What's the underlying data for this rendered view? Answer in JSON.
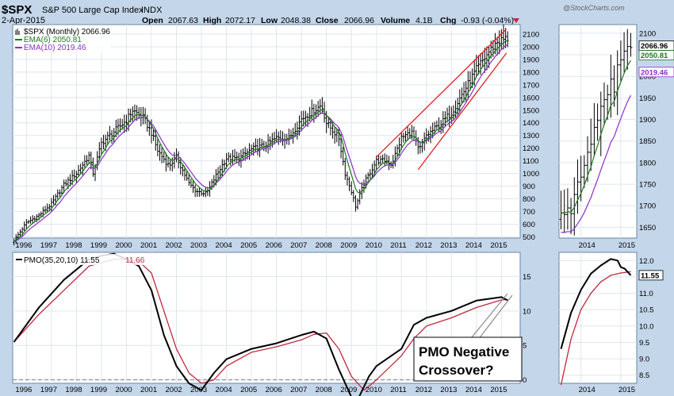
{
  "header": {
    "symbol": "$SPX",
    "name": "S&P 500 Large Cap Index",
    "exchange": "INDX",
    "date": "2-Apr-2015",
    "watermark": "@StockCharts.com",
    "open_label": "Open",
    "open": "2067.63",
    "high_label": "High",
    "high": "2072.17",
    "low_label": "Low",
    "low": "2048.38",
    "close_label": "Close",
    "close": "2066.96",
    "volume_label": "Volume",
    "volume": "4.1B",
    "chg_label": "Chg",
    "chg": "-0.93 (-0.04%)"
  },
  "colors": {
    "background": "#c4d6ea",
    "panel": "#ffffff",
    "grid": "#dfe6ee",
    "price_bars": "#000000",
    "ema_short": "#1b7a1b",
    "ema_long": "#8b2fc9",
    "channel": "#e02020",
    "pmo": "#000000",
    "signal": "#c0283c",
    "zero_line": "#7f7f7f"
  },
  "annotation": {
    "line1": "PMO Negative",
    "line2": "Crossover?"
  },
  "chart_data": [
    {
      "id": "price-main",
      "type": "ohlc",
      "legend": [
        "$SPX (Monthly) 2066.96",
        "EMA(6) 2050.81",
        "EMA(10) 2019.46"
      ],
      "x_ticks": [
        "1996",
        "1997",
        "1998",
        "1999",
        "2000",
        "2001",
        "2002",
        "2003",
        "2004",
        "2005",
        "2006",
        "2007",
        "2008",
        "2009",
        "2010",
        "2011",
        "2012",
        "2013",
        "2014",
        "2015"
      ],
      "y_ticks": [
        "500",
        "600",
        "700",
        "800",
        "900",
        "1000",
        "1100",
        "1200",
        "1300",
        "1400",
        "1500",
        "1600",
        "1700",
        "1800",
        "1900",
        "2000",
        "2100"
      ],
      "ylim": [
        490,
        2175
      ],
      "xlim": [
        1995.45,
        2015.75
      ],
      "anchors": [
        [
          1995.5,
          470
        ],
        [
          1996.0,
          610
        ],
        [
          1996.5,
          670
        ],
        [
          1997.0,
          760
        ],
        [
          1997.5,
          910
        ],
        [
          1998.0,
          1000
        ],
        [
          1998.5,
          1140
        ],
        [
          1998.67,
          1000
        ],
        [
          1999.0,
          1240
        ],
        [
          1999.5,
          1330
        ],
        [
          2000.0,
          1420
        ],
        [
          2000.25,
          1500
        ],
        [
          2000.67,
          1440
        ],
        [
          2001.0,
          1320
        ],
        [
          2001.25,
          1180
        ],
        [
          2001.7,
          1060
        ],
        [
          2002.0,
          1130
        ],
        [
          2002.5,
          920
        ],
        [
          2002.8,
          860
        ],
        [
          2003.2,
          840
        ],
        [
          2003.6,
          990
        ],
        [
          2004.0,
          1120
        ],
        [
          2004.5,
          1120
        ],
        [
          2005.0,
          1190
        ],
        [
          2005.5,
          1220
        ],
        [
          2006.0,
          1280
        ],
        [
          2006.5,
          1280
        ],
        [
          2007.0,
          1430
        ],
        [
          2007.5,
          1500
        ],
        [
          2007.8,
          1540
        ],
        [
          2008.0,
          1400
        ],
        [
          2008.5,
          1280
        ],
        [
          2008.75,
          1000
        ],
        [
          2009.0,
          860
        ],
        [
          2009.17,
          740
        ],
        [
          2009.5,
          920
        ],
        [
          2010.0,
          1100
        ],
        [
          2010.4,
          1100
        ],
        [
          2010.6,
          1070
        ],
        [
          2011.0,
          1280
        ],
        [
          2011.4,
          1330
        ],
        [
          2011.7,
          1180
        ],
        [
          2012.0,
          1300
        ],
        [
          2012.5,
          1380
        ],
        [
          2013.0,
          1480
        ],
        [
          2013.5,
          1650
        ],
        [
          2014.0,
          1820
        ],
        [
          2014.5,
          1960
        ],
        [
          2014.83,
          2040
        ],
        [
          2015.0,
          2050
        ],
        [
          2015.25,
          2067
        ]
      ],
      "channel_lines": [
        {
          "x": [
            2010.0,
            2015.2
          ],
          "y": [
            1130,
            2140
          ]
        },
        {
          "x": [
            2011.67,
            2015.2
          ],
          "y": [
            1030,
            1950
          ]
        }
      ]
    },
    {
      "id": "price-zoom",
      "type": "ohlc",
      "x_ticks": [
        "2014",
        "2015"
      ],
      "y_ticks": [
        "1650",
        "1700",
        "1750",
        "1800",
        "1850",
        "1900",
        "1950",
        "2000",
        "2050",
        "2100"
      ],
      "ylim": [
        1625,
        2120
      ],
      "xlim": [
        2013.45,
        2015.4
      ],
      "value_labels": [
        "2066.96",
        "2050.81",
        "2019.46"
      ],
      "values": [
        2066.96,
        2050.81,
        2019.46
      ]
    },
    {
      "id": "pmo-main",
      "type": "line",
      "legend": [
        "PMO(35,20,10) 11.55",
        "11.66"
      ],
      "x_ticks": [
        "1996",
        "1997",
        "1998",
        "1999",
        "2000",
        "2001",
        "2002",
        "2003",
        "2004",
        "2005",
        "2006",
        "2007",
        "2008",
        "2009",
        "2010",
        "2011",
        "2012",
        "2013",
        "2014",
        "2015"
      ],
      "y_ticks": [
        "0",
        "5",
        "10",
        "15"
      ],
      "ylim": [
        -0.5,
        18.5
      ],
      "xlim": [
        1995.45,
        2015.75
      ],
      "series": [
        {
          "name": "PMO(35,20,10)",
          "x": [
            1995.5,
            1996.5,
            1997.5,
            1998.5,
            1999.0,
            1999.5,
            2000.0,
            2000.5,
            2001.0,
            2001.5,
            2002.0,
            2002.5,
            2003.0,
            2003.5,
            2004.0,
            2005.0,
            2006.0,
            2007.0,
            2007.5,
            2008.0,
            2008.5,
            2009.0,
            2009.3,
            2009.7,
            2010.0,
            2011.0,
            2011.5,
            2012.0,
            2013.0,
            2014.0,
            2015.0,
            2015.25
          ],
          "y": [
            5.5,
            10.5,
            14.5,
            17.5,
            18.0,
            18.3,
            17.5,
            16.5,
            13.0,
            6.5,
            2.0,
            -0.5,
            -1.5,
            1.0,
            3.0,
            4.5,
            5.3,
            6.5,
            7.0,
            6.0,
            1.5,
            -2.5,
            -2.5,
            0.5,
            2.0,
            4.5,
            8.0,
            9.0,
            10.0,
            11.5,
            12.0,
            11.55
          ]
        },
        {
          "name": "Signal",
          "x": [
            1995.5,
            1996.5,
            1997.5,
            1998.5,
            1999.0,
            1999.5,
            2000.0,
            2000.5,
            2001.0,
            2001.5,
            2002.0,
            2002.5,
            2003.0,
            2003.5,
            2004.0,
            2005.0,
            2006.0,
            2007.0,
            2007.5,
            2008.0,
            2008.5,
            2009.0,
            2009.5,
            2010.0,
            2011.0,
            2011.5,
            2012.0,
            2013.0,
            2014.0,
            2015.0,
            2015.25
          ],
          "y": [
            5.5,
            9.5,
            13.0,
            16.5,
            17.0,
            17.5,
            17.5,
            17.2,
            15.5,
            10.0,
            4.5,
            1.0,
            -0.5,
            0.0,
            2.0,
            4.0,
            4.8,
            5.8,
            6.6,
            6.8,
            4.5,
            0.5,
            -1.5,
            0.0,
            3.5,
            6.0,
            7.8,
            9.0,
            10.5,
            11.6,
            11.66
          ]
        }
      ]
    },
    {
      "id": "pmo-zoom",
      "type": "line",
      "x_ticks": [
        "2014",
        "2015"
      ],
      "y_ticks": [
        "8.5",
        "9.0",
        "9.5",
        "10.0",
        "10.5",
        "11.0",
        "11.5",
        "12.0"
      ],
      "ylim": [
        8.25,
        12.25
      ],
      "xlim": [
        2013.45,
        2015.4
      ],
      "value_label": "11.55",
      "value": 11.55,
      "series": [
        {
          "name": "PMO",
          "x": [
            2013.5,
            2013.75,
            2014.0,
            2014.25,
            2014.5,
            2014.75,
            2014.92,
            2015.0,
            2015.1,
            2015.25
          ],
          "y": [
            9.3,
            10.4,
            11.1,
            11.6,
            11.85,
            12.05,
            12.0,
            11.8,
            11.75,
            11.55
          ]
        },
        {
          "name": "Signal",
          "x": [
            2013.5,
            2013.75,
            2014.0,
            2014.25,
            2014.5,
            2014.75,
            2015.0,
            2015.25
          ],
          "y": [
            8.2,
            9.6,
            10.5,
            11.0,
            11.35,
            11.55,
            11.62,
            11.66
          ]
        }
      ]
    }
  ]
}
